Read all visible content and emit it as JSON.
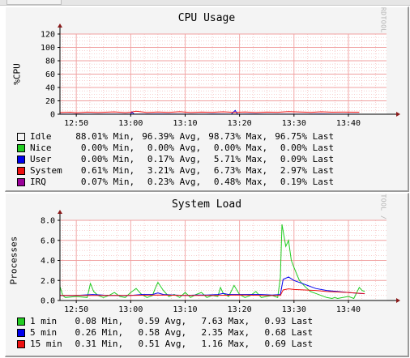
{
  "colors": {
    "idle": "#f4f4f4",
    "nice": "#22cc22",
    "user": "#0000ee",
    "system": "#ee1111",
    "irq": "#990099",
    "load1": "#22cc22",
    "load5": "#0000ee",
    "load15": "#ee1111",
    "grid": "#f0a0a0",
    "axis": "#000000",
    "arrow": "#8b1a1a"
  },
  "chart_data": [
    {
      "type": "line",
      "title": "CPU Usage",
      "ylabel": "%CPU",
      "watermark": "RRDTOOL / TOBI OETIKER",
      "ylim": [
        0,
        120
      ],
      "yticks": [
        "0",
        "20",
        "40",
        "60",
        "80",
        "100",
        "120"
      ],
      "yvalues": [
        0,
        20,
        40,
        60,
        80,
        100,
        120
      ],
      "xticks": [
        "12:50",
        "13:00",
        "13:10",
        "13:20",
        "13:30",
        "13:40"
      ],
      "xtick_minutes": [
        0,
        10,
        20,
        30,
        40,
        50
      ],
      "xlim_minutes": [
        -3,
        57
      ],
      "grid": true,
      "series": [
        {
          "name": "Idle",
          "stats": {
            "min": "88.01%",
            "avg": "96.39%",
            "max": "98.73%",
            "last": "96.75%"
          },
          "values": []
        },
        {
          "name": "Nice",
          "stats": {
            "min": "0.00%",
            "avg": "0.00%",
            "max": "0.00%",
            "last": "0.00%"
          },
          "values": []
        },
        {
          "name": "User",
          "stats": {
            "min": "0.00%",
            "avg": "0.17%",
            "max": "5.71%",
            "last": "0.09%"
          },
          "x": [
            -3,
            0,
            5,
            10,
            10.2,
            10.6,
            15,
            20,
            25,
            28,
            28.5,
            29.2,
            29.6,
            30,
            32,
            35,
            40,
            45,
            47,
            50,
            52
          ],
          "y": [
            0.1,
            0.1,
            0.1,
            0.1,
            3.5,
            0.1,
            0.2,
            0.1,
            0.2,
            0.1,
            0.4,
            5.7,
            0.3,
            0.1,
            0.2,
            0.1,
            0.1,
            0.2,
            0.1,
            0.1,
            0.1
          ]
        },
        {
          "name": "System",
          "stats": {
            "min": "0.61%",
            "avg": "3.21%",
            "max": "6.73%",
            "last": "2.97%"
          },
          "x": [
            -3,
            -1,
            0,
            2,
            4,
            7,
            9,
            10,
            11,
            13,
            15,
            17,
            19,
            21,
            23,
            25,
            27,
            29,
            31,
            33,
            35,
            37,
            39,
            41,
            43,
            45,
            47,
            49,
            51,
            52
          ],
          "y": [
            2.5,
            3.0,
            2.2,
            3.2,
            2.5,
            3.5,
            2.4,
            3.0,
            4.5,
            2.6,
            3.3,
            2.8,
            3.8,
            2.5,
            3.2,
            2.9,
            3.6,
            2.7,
            3.4,
            2.6,
            3.1,
            2.9,
            4.0,
            3.3,
            2.8,
            3.6,
            3.0,
            3.2,
            3.0,
            3.0
          ]
        },
        {
          "name": "IRQ",
          "stats": {
            "min": "0.07%",
            "avg": "0.23%",
            "max": "0.48%",
            "last": "0.19%"
          },
          "values": []
        }
      ]
    },
    {
      "type": "line",
      "title": "System Load",
      "ylabel": "Processes",
      "watermark": "RRDTOOL / TOBI OETIKER",
      "ylim": [
        0,
        8
      ],
      "yticks": [
        "0.0",
        "2.0",
        "4.0",
        "6.0",
        "8.0"
      ],
      "yvalues": [
        0,
        2,
        4,
        6,
        8
      ],
      "xticks": [
        "12:50",
        "13:00",
        "13:10",
        "13:20",
        "13:30",
        "13:40"
      ],
      "xtick_minutes": [
        0,
        10,
        20,
        30,
        40,
        50
      ],
      "xlim_minutes": [
        -3,
        57
      ],
      "grid": true,
      "series": [
        {
          "name": "1 min",
          "stats": {
            "min": "0.08",
            "avg": "0.59",
            "max": "7.63",
            "last": "0.93"
          },
          "x": [
            -3,
            -2.5,
            -2,
            0,
            2,
            2.6,
            3.2,
            4,
            5,
            6,
            7,
            8,
            9,
            10,
            11,
            12,
            13,
            14,
            14.5,
            15,
            16,
            17,
            18,
            19,
            20,
            21,
            22,
            23,
            24,
            25,
            26,
            26.5,
            27,
            28,
            29,
            30,
            31,
            32,
            33,
            34,
            35,
            36,
            37,
            37.5,
            37.8,
            38.5,
            39,
            39.5,
            40,
            41,
            42,
            43,
            44,
            45,
            46,
            47,
            47.5,
            48,
            49,
            50,
            51,
            52,
            52.5,
            53
          ],
          "y": [
            1.4,
            0.5,
            0.3,
            0.4,
            0.3,
            1.7,
            0.9,
            0.5,
            0.3,
            0.5,
            0.8,
            0.4,
            0.3,
            0.8,
            1.2,
            0.6,
            0.3,
            0.5,
            1.2,
            1.8,
            1.0,
            0.4,
            0.6,
            0.3,
            0.8,
            0.3,
            0.6,
            0.8,
            0.3,
            0.5,
            0.4,
            1.3,
            0.7,
            0.4,
            1.5,
            0.6,
            0.3,
            0.5,
            0.9,
            0.3,
            0.4,
            0.5,
            0.3,
            2.3,
            7.6,
            5.4,
            6.0,
            4.0,
            3.3,
            2.0,
            1.4,
            0.9,
            0.7,
            0.5,
            0.3,
            0.2,
            0.3,
            0.2,
            0.3,
            0.4,
            0.2,
            1.3,
            1.0,
            0.9
          ]
        },
        {
          "name": "5 min",
          "stats": {
            "min": "0.26",
            "avg": "0.58",
            "max": "2.35",
            "last": "0.68"
          },
          "x": [
            -3,
            0,
            3,
            6,
            8,
            10,
            12,
            14,
            15,
            16,
            18,
            20,
            22,
            24,
            26,
            27,
            28,
            30,
            32,
            34,
            36,
            37.5,
            38,
            39,
            40,
            41,
            42,
            43,
            44,
            46,
            48,
            50,
            52,
            53
          ],
          "y": [
            0.5,
            0.5,
            0.6,
            0.5,
            0.5,
            0.5,
            0.6,
            0.6,
            0.75,
            0.6,
            0.55,
            0.5,
            0.55,
            0.55,
            0.6,
            0.7,
            0.6,
            0.6,
            0.6,
            0.6,
            0.55,
            0.6,
            2.1,
            2.35,
            2.0,
            1.8,
            1.6,
            1.4,
            1.2,
            1.0,
            0.9,
            0.8,
            0.7,
            0.68
          ]
        },
        {
          "name": "15 min",
          "stats": {
            "min": "0.31",
            "avg": "0.51",
            "max": "1.16",
            "last": "0.69"
          },
          "x": [
            -3,
            0,
            5,
            10,
            15,
            20,
            25,
            30,
            35,
            37.5,
            38,
            39,
            40,
            42,
            44,
            46,
            48,
            50,
            52,
            53
          ],
          "y": [
            0.5,
            0.5,
            0.5,
            0.5,
            0.55,
            0.5,
            0.5,
            0.55,
            0.5,
            0.5,
            1.05,
            1.16,
            1.1,
            1.05,
            1.0,
            0.9,
            0.85,
            0.8,
            0.72,
            0.69
          ]
        }
      ]
    }
  ]
}
